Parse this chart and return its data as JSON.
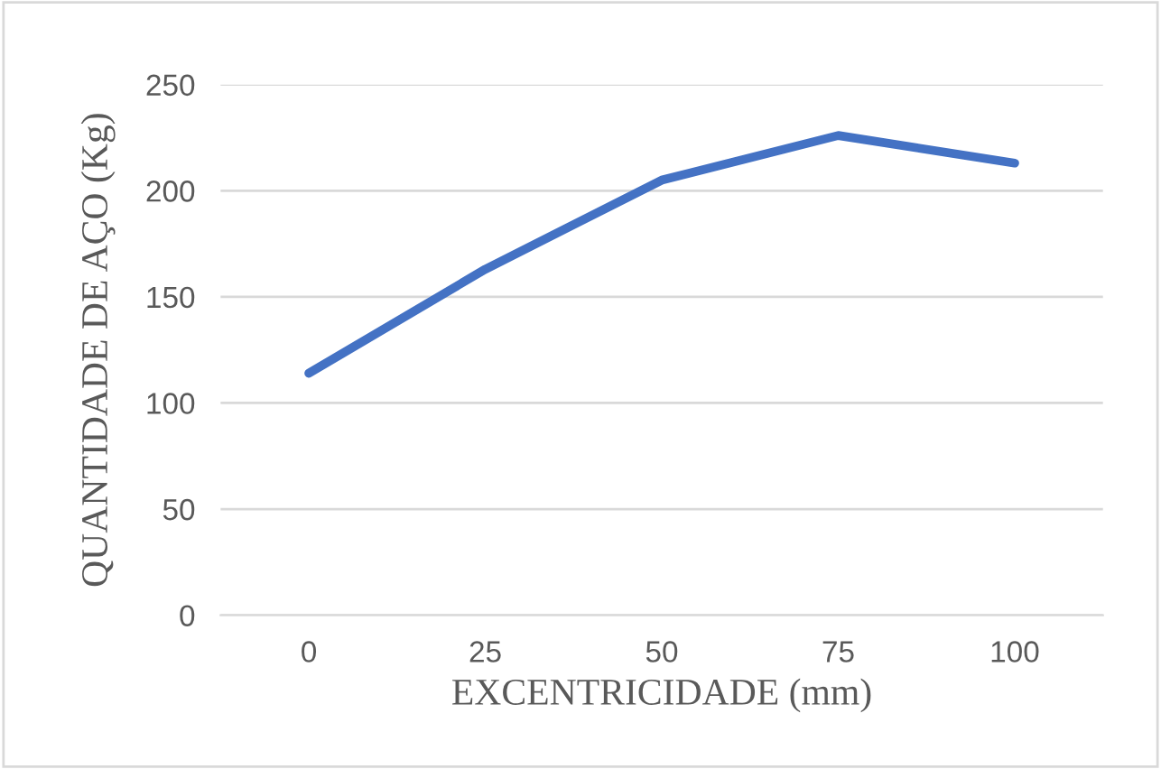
{
  "chart_data": {
    "type": "line",
    "xlabel": "EXCENTRICIDADE (mm)",
    "ylabel": "QUANTIDADE DE AÇO (Kg)",
    "categories": [
      "0",
      "25",
      "50",
      "75",
      "100"
    ],
    "series": [
      {
        "color": "#4472c4",
        "values": [
          114,
          163,
          205,
          226,
          213
        ]
      }
    ],
    "ylim": [
      0,
      250
    ],
    "yticks": [
      0,
      50,
      100,
      150,
      200,
      250
    ],
    "grid": "y",
    "marker": "none",
    "line_style": "solid",
    "legend": false
  }
}
